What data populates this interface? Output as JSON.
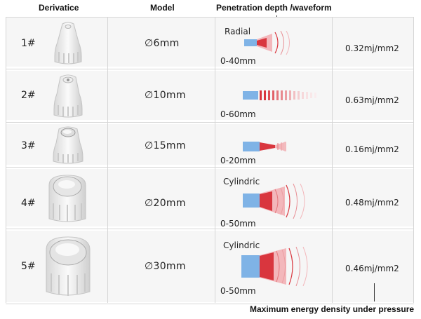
{
  "headers": {
    "derivative": "Derivatice",
    "model": "Model",
    "penetration": "Penetration depth /waveform"
  },
  "rows": [
    {
      "index": "1#",
      "model": "∅6mm",
      "wave_type": "Radial",
      "depth": "0-40mm",
      "energy": "0.32mj/mm2"
    },
    {
      "index": "2#",
      "model": "∅10mm",
      "wave_type": "",
      "depth": "0-60mm",
      "energy": "0.63mj/mm2"
    },
    {
      "index": "3#",
      "model": "∅15mm",
      "wave_type": "",
      "depth": "0-20mm",
      "energy": "0.16mj/mm2"
    },
    {
      "index": "4#",
      "model": "∅20mm",
      "wave_type": "Cylindric",
      "depth": "0-50mm",
      "energy": "0.48mj/mm2"
    },
    {
      "index": "5#",
      "model": "∅30mm",
      "wave_type": "Cylindric",
      "depth": "0-50mm",
      "energy": "0.46mj/mm2"
    }
  ],
  "footnote": "Maximum energy density under pressure",
  "colors": {
    "row_band": "#f6f6f6",
    "grid": "#d6d6d6",
    "emitter_blue": "#7fb3e6",
    "wave_red": "#d9363e",
    "wave_pink": "#f3b7bb"
  }
}
